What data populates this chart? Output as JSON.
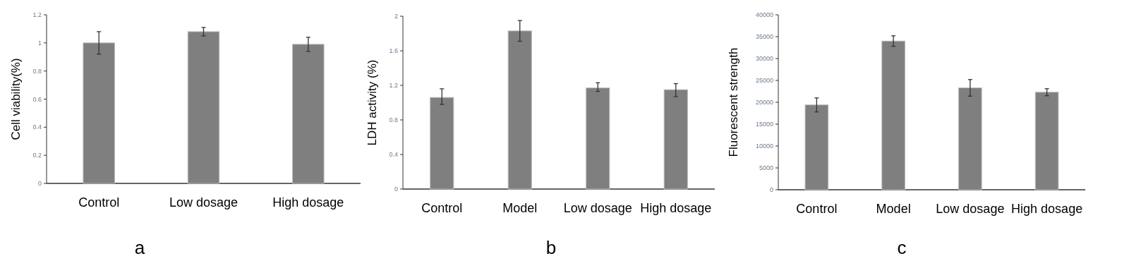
{
  "chart_data": [
    {
      "type": "bar",
      "categories": [
        "Control",
        "Low dosage",
        "High dosage"
      ],
      "ylabel": "Cell viability(%)",
      "color": "#7f7f7f",
      "values": [
        1.0,
        1.08,
        0.99
      ],
      "errors": [
        0.08,
        0.03,
        0.05
      ],
      "ylim": [
        0,
        1.2
      ],
      "yticks": [
        0,
        0.2,
        0.4,
        0.6,
        0.8,
        1,
        1.2
      ],
      "annotations": [
        "a"
      ]
    },
    {
      "type": "bar",
      "categories": [
        "Control",
        "Model",
        "Low dosage",
        "High dosage"
      ],
      "ylabel": "LDH activity (%)",
      "color": "#7f7f7f",
      "values": [
        1.06,
        1.83,
        1.17,
        1.15
      ],
      "errors": [
        [
          0.98,
          1.16
        ],
        [
          1.71,
          1.95
        ],
        [
          1.13,
          1.23
        ],
        [
          1.07,
          1.22
        ]
      ],
      "ylim": [
        0,
        2
      ],
      "yticks": [
        0,
        0.4,
        0.8,
        1.2,
        1.6,
        2
      ],
      "annotations": [
        "b"
      ]
    },
    {
      "type": "bar",
      "categories": [
        "Control",
        "Model",
        "Low dosage",
        "High dosage"
      ],
      "ylabel": "Fluorescent strength",
      "color": "#7f7f7f",
      "values": [
        19400,
        34000,
        23300,
        22300
      ],
      "errors": [
        1600,
        1200,
        1900,
        800
      ],
      "ylim": [
        0,
        40000
      ],
      "yticks": [
        0,
        5000,
        10000,
        15000,
        20000,
        25000,
        30000,
        35000,
        40000
      ],
      "annotations": [
        "c"
      ]
    }
  ]
}
